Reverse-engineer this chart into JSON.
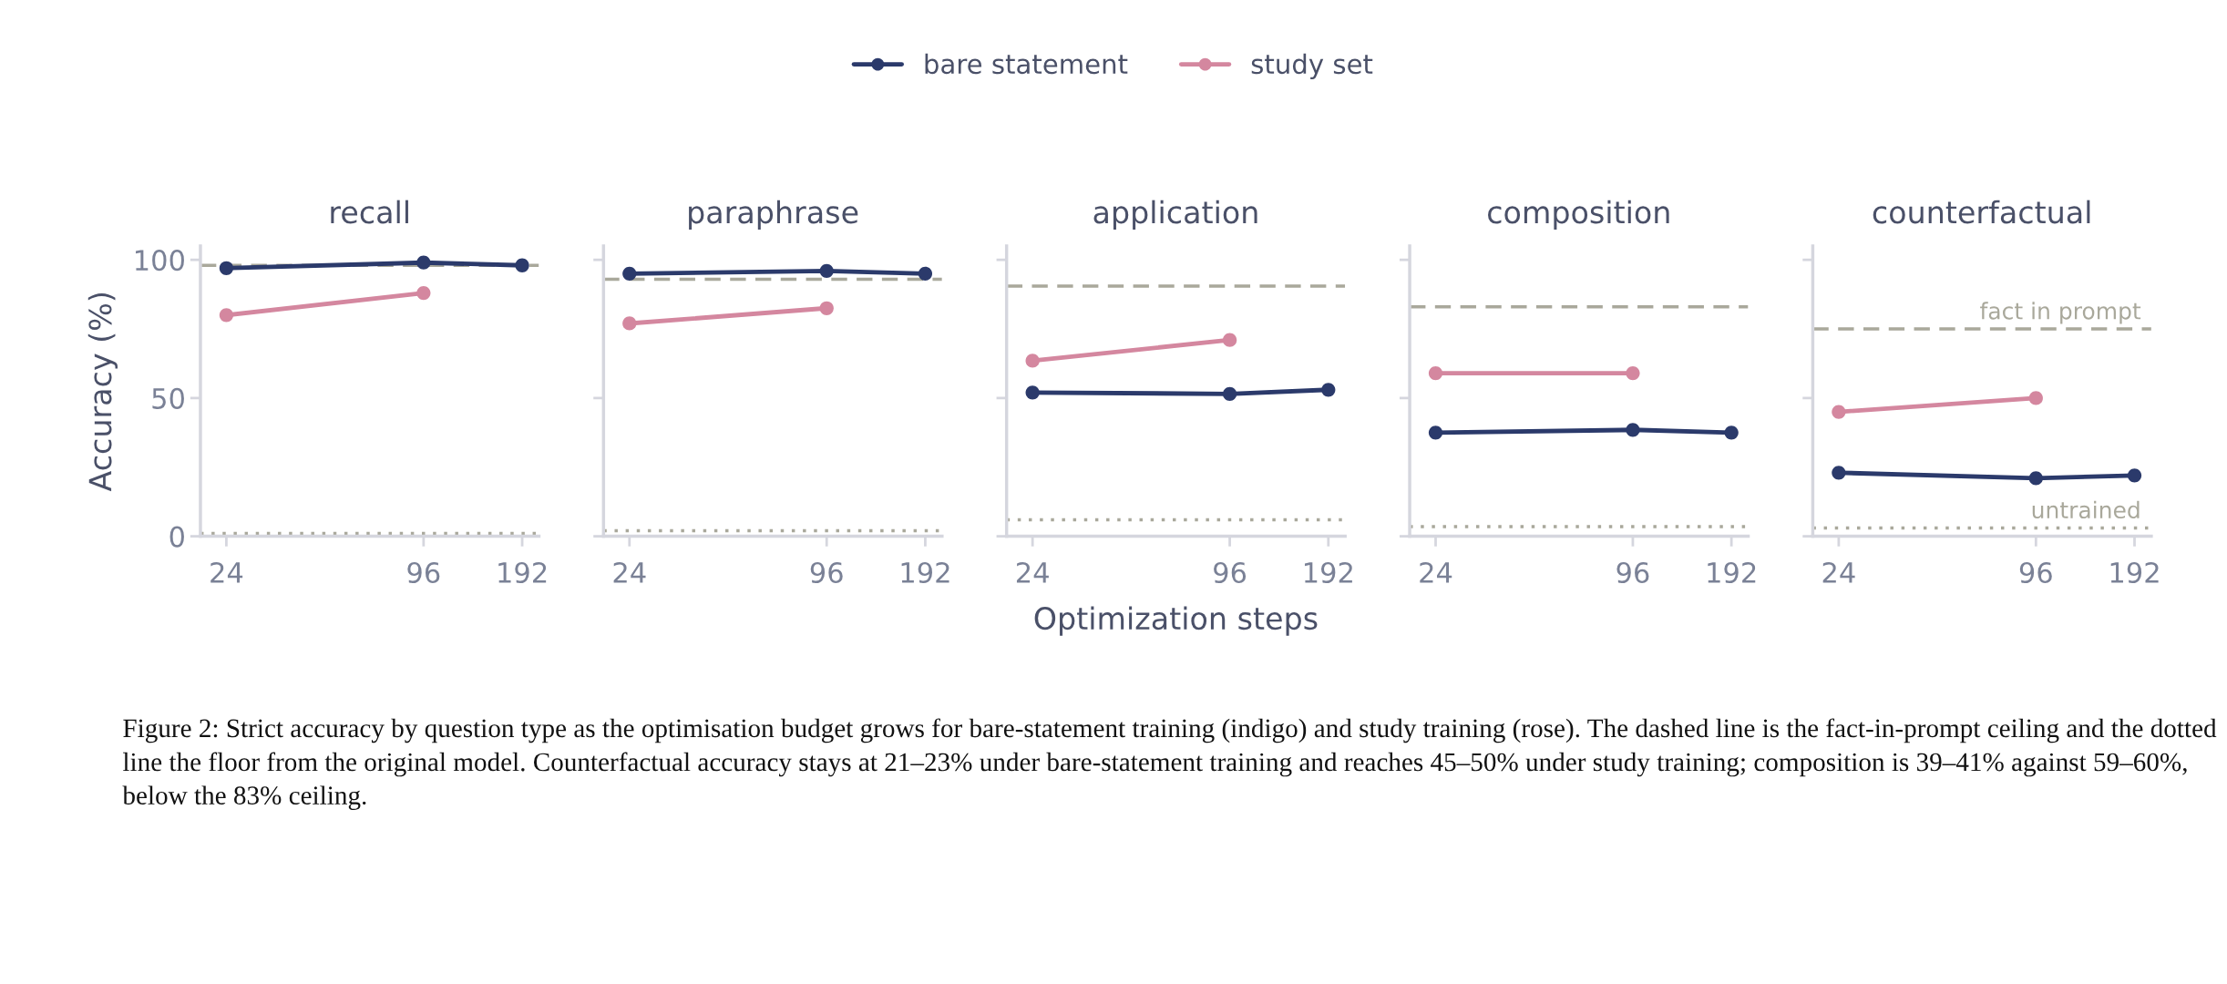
{
  "chart_data": [
    {
      "type": "line",
      "title": "recall",
      "ylabel": "Accuracy (%)",
      "legend": "top",
      "log": "x",
      "marker": "circle",
      "x": [
        24,
        96,
        192
      ],
      "xlim": [
        20,
        216
      ],
      "xticks": [
        24,
        96,
        192
      ],
      "ylim": [
        0,
        105
      ],
      "yticks": [
        0,
        50,
        100
      ],
      "series": [
        {
          "name": "bare statement",
          "color": "#2b3a6b",
          "values": [
            97,
            99,
            98
          ]
        },
        {
          "name": "study set",
          "color": "#d4879f",
          "values": [
            80,
            88,
            null
          ]
        }
      ],
      "ref_lines": [
        {
          "axis": "y",
          "value": 98,
          "line_style": "dashed",
          "color": "#a9a89b"
        },
        {
          "axis": "y",
          "value": 1,
          "line_style": "dotted",
          "color": "#a9a89b"
        }
      ],
      "annotations": [
        "Figure 2: Strict accuracy by question type as the optimisation budget grows for bare-statement training (indigo) and study training (rose). The dashed line is the fact-in-prompt ceiling and the dotted line the floor from the original model. Counterfactual accuracy stays at 21–23% under bare-statement training and reaches 45–50% under study training; composition is 39–41% against 59–60%, below the 83% ceiling."
      ]
    },
    {
      "type": "line",
      "title": "paraphrase",
      "tick_labels": "x",
      "log": "x",
      "marker": "circle",
      "x": [
        24,
        96,
        192
      ],
      "xlim": [
        20,
        216
      ],
      "xticks": [
        24,
        96,
        192
      ],
      "ylim": [
        0,
        105
      ],
      "yticks": [
        0,
        50,
        100
      ],
      "series": [
        {
          "color": "#2b3a6b",
          "values": [
            95,
            96,
            95
          ]
        },
        {
          "color": "#d4879f",
          "values": [
            77,
            82.5,
            null
          ]
        }
      ],
      "ref_lines": [
        {
          "axis": "y",
          "value": 93,
          "line_style": "dashed",
          "color": "#a9a89b"
        },
        {
          "axis": "y",
          "value": 2,
          "line_style": "dotted",
          "color": "#a9a89b"
        }
      ]
    },
    {
      "type": "line",
      "title": "application",
      "xlabel": "Optimization steps",
      "tick_labels": "x",
      "log": "x",
      "marker": "circle",
      "x": [
        24,
        96,
        192
      ],
      "xlim": [
        20,
        216
      ],
      "xticks": [
        24,
        96,
        192
      ],
      "ylim": [
        0,
        105
      ],
      "yticks": [
        0,
        50,
        100
      ],
      "series": [
        {
          "color": "#2b3a6b",
          "values": [
            52,
            51.5,
            53
          ]
        },
        {
          "color": "#d4879f",
          "values": [
            63.5,
            71,
            null
          ]
        }
      ],
      "ref_lines": [
        {
          "axis": "y",
          "value": 90.5,
          "line_style": "dashed",
          "color": "#a9a89b"
        },
        {
          "axis": "y",
          "value": 6,
          "line_style": "dotted",
          "color": "#a9a89b"
        }
      ]
    },
    {
      "type": "line",
      "title": "composition",
      "tick_labels": "x",
      "log": "x",
      "marker": "circle",
      "x": [
        24,
        96,
        192
      ],
      "xlim": [
        20,
        216
      ],
      "xticks": [
        24,
        96,
        192
      ],
      "ylim": [
        0,
        105
      ],
      "yticks": [
        0,
        50,
        100
      ],
      "series": [
        {
          "color": "#2b3a6b",
          "values": [
            37.5,
            38.5,
            37.5
          ]
        },
        {
          "color": "#d4879f",
          "values": [
            59,
            59,
            null
          ]
        }
      ],
      "ref_lines": [
        {
          "axis": "y",
          "value": 83,
          "line_style": "dashed",
          "color": "#a9a89b"
        },
        {
          "axis": "y",
          "value": 3.5,
          "line_style": "dotted",
          "color": "#a9a89b"
        }
      ]
    },
    {
      "type": "line",
      "title": "counterfactual",
      "tick_labels": "x",
      "log": "x",
      "marker": "circle",
      "x": [
        24,
        96,
        192
      ],
      "xlim": [
        20,
        216
      ],
      "xticks": [
        24,
        96,
        192
      ],
      "ylim": [
        0,
        105
      ],
      "yticks": [
        0,
        50,
        100
      ],
      "series": [
        {
          "color": "#2b3a6b",
          "values": [
            23,
            21,
            22
          ]
        },
        {
          "color": "#d4879f",
          "values": [
            45,
            50,
            null
          ]
        }
      ],
      "ref_lines": [
        {
          "axis": "y",
          "value": 75,
          "line_style": "dashed",
          "color": "#a9a89b",
          "label": "fact in prompt"
        },
        {
          "axis": "y",
          "value": 3,
          "line_style": "dotted",
          "color": "#a9a89b",
          "label": "untrained"
        }
      ]
    }
  ]
}
